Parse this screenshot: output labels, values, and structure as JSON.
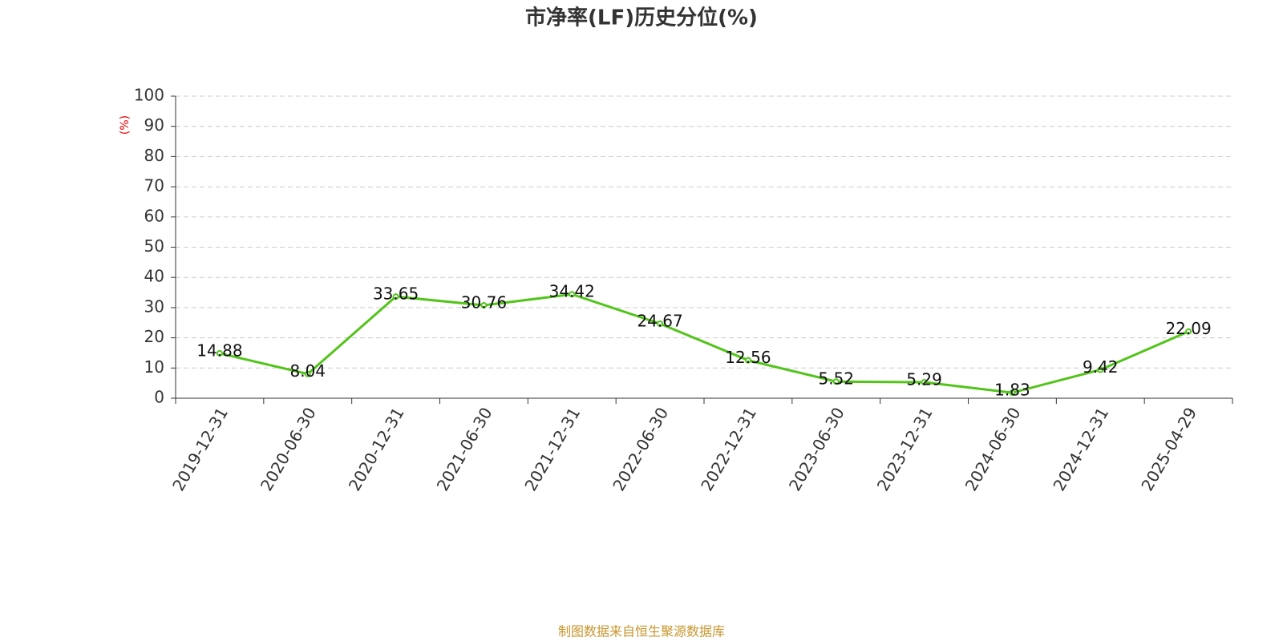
{
  "chart_data": {
    "type": "line",
    "title": "市净率(LF)历史分位(%)",
    "y_label": "(%)",
    "source": "制图数据来自恒生聚源数据库",
    "categories": [
      "2019-12-31",
      "2020-06-30",
      "2020-12-31",
      "2021-06-30",
      "2021-12-31",
      "2022-06-30",
      "2022-12-31",
      "2023-06-30",
      "2023-12-31",
      "2024-06-30",
      "2024-12-31",
      "2025-04-29"
    ],
    "values": [
      14.88,
      8.04,
      33.65,
      30.76,
      34.42,
      24.67,
      12.56,
      5.52,
      5.29,
      1.83,
      9.42,
      22.09
    ],
    "color": "#52c41a",
    "ylim": [
      0,
      100
    ],
    "yticks": [
      0,
      10,
      20,
      30,
      40,
      50,
      60,
      70,
      80,
      90,
      100
    ],
    "grid": true
  }
}
